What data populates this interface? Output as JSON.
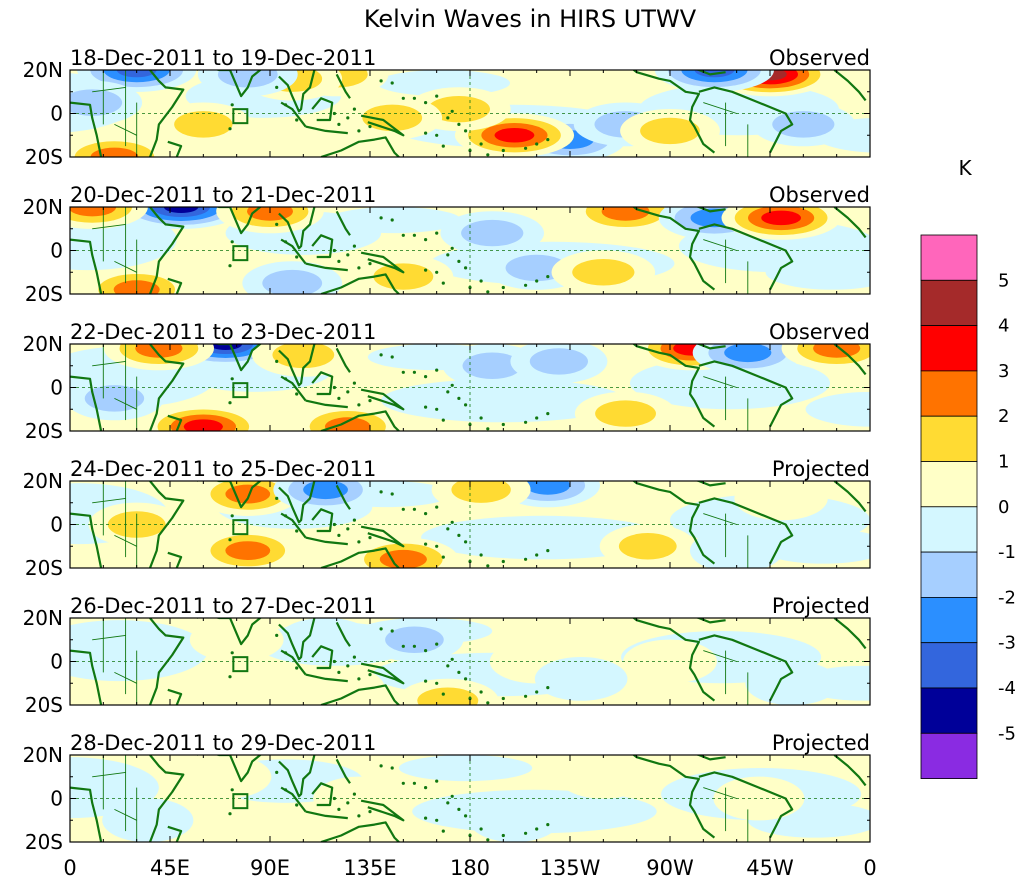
{
  "chart_data": {
    "type": "heatmap",
    "title": "Kelvin Waves in HIRS UTWV",
    "colorbar": {
      "unit_label": "K",
      "levels": [
        "5",
        "4",
        "3",
        "2",
        "1",
        "0",
        "-1",
        "-2",
        "-3",
        "-4",
        "-5"
      ],
      "colors": [
        "#ff66bb",
        "#a52a2a",
        "#ff0000",
        "#ff7300",
        "#ffdb33",
        "#ffffc7",
        "#d4f7ff",
        "#a6cfff",
        "#2b8fff",
        "#3366dd",
        "#000099",
        "#8a2be2"
      ]
    },
    "x_ticks": [
      "0",
      "45E",
      "90E",
      "135E",
      "180",
      "135W",
      "90W",
      "45W",
      "0"
    ],
    "y_ticks": [
      "20N",
      "0",
      "20S"
    ],
    "panels": [
      {
        "period": "18-Dec-2011 to 19-Dec-2011",
        "status": "Observed",
        "amp": 1.0
      },
      {
        "period": "20-Dec-2011 to 21-Dec-2011",
        "status": "Observed",
        "amp": 1.0
      },
      {
        "period": "22-Dec-2011 to 23-Dec-2011",
        "status": "Observed",
        "amp": 0.95
      },
      {
        "period": "24-Dec-2011 to 25-Dec-2011",
        "status": "Projected",
        "amp": 0.7
      },
      {
        "period": "26-Dec-2011 to 27-Dec-2011",
        "status": "Projected",
        "amp": 0.5
      },
      {
        "period": "28-Dec-2011 to 29-Dec-2011",
        "status": "Projected",
        "amp": 0.35
      }
    ],
    "anomalies": [
      [
        {
          "lon": 30,
          "lat": 20,
          "v": -4
        },
        {
          "lon": 120,
          "lat": 18,
          "v": 2
        },
        {
          "lon": 100,
          "lat": 16,
          "v": 1.5
        },
        {
          "lon": 315,
          "lat": 18,
          "v": 4.5
        },
        {
          "lon": 290,
          "lat": 20,
          "v": -4
        },
        {
          "lon": 225,
          "lat": -12,
          "v": -3
        },
        {
          "lon": 200,
          "lat": -10,
          "v": 4
        },
        {
          "lon": 175,
          "lat": 2,
          "v": 2
        },
        {
          "lon": 145,
          "lat": -2,
          "v": 1.5
        },
        {
          "lon": 20,
          "lat": -20,
          "v": 3
        },
        {
          "lon": 250,
          "lat": -5,
          "v": -2
        },
        {
          "lon": 10,
          "lat": 5,
          "v": -1.5
        },
        {
          "lon": 60,
          "lat": -5,
          "v": 1.2
        },
        {
          "lon": 330,
          "lat": -5,
          "v": -2
        },
        {
          "lon": 80,
          "lat": 18,
          "v": -1.5
        },
        {
          "lon": 270,
          "lat": -8,
          "v": 1.5
        }
      ],
      [
        {
          "lon": 50,
          "lat": 20,
          "v": -5
        },
        {
          "lon": 10,
          "lat": 20,
          "v": 3
        },
        {
          "lon": 90,
          "lat": 18,
          "v": 2.5
        },
        {
          "lon": 250,
          "lat": 18,
          "v": 3
        },
        {
          "lon": 290,
          "lat": 15,
          "v": -3
        },
        {
          "lon": 320,
          "lat": 15,
          "v": 4
        },
        {
          "lon": 210,
          "lat": -8,
          "v": -2
        },
        {
          "lon": 240,
          "lat": -10,
          "v": 2
        },
        {
          "lon": 30,
          "lat": -18,
          "v": 2.5
        },
        {
          "lon": 150,
          "lat": -12,
          "v": 1.5
        },
        {
          "lon": 190,
          "lat": 8,
          "v": -2
        },
        {
          "lon": 100,
          "lat": -15,
          "v": -1.5
        }
      ],
      [
        {
          "lon": 70,
          "lat": 20,
          "v": -4.5
        },
        {
          "lon": 40,
          "lat": 18,
          "v": 3
        },
        {
          "lon": 105,
          "lat": 15,
          "v": 2
        },
        {
          "lon": 280,
          "lat": 18,
          "v": 3.5
        },
        {
          "lon": 305,
          "lat": 16,
          "v": -3
        },
        {
          "lon": 345,
          "lat": 18,
          "v": 3
        },
        {
          "lon": 60,
          "lat": -18,
          "v": 4
        },
        {
          "lon": 125,
          "lat": -18,
          "v": 2.5
        },
        {
          "lon": 250,
          "lat": -12,
          "v": 1.8
        },
        {
          "lon": 190,
          "lat": 10,
          "v": -1.5
        },
        {
          "lon": 20,
          "lat": -5,
          "v": -1.5
        },
        {
          "lon": 220,
          "lat": 12,
          "v": -1.2
        }
      ],
      [
        {
          "lon": 80,
          "lat": 14,
          "v": 3
        },
        {
          "lon": 115,
          "lat": 16,
          "v": -3
        },
        {
          "lon": 80,
          "lat": -12,
          "v": 3
        },
        {
          "lon": 150,
          "lat": -16,
          "v": 4
        },
        {
          "lon": 215,
          "lat": 18,
          "v": -3
        },
        {
          "lon": 185,
          "lat": 16,
          "v": 2
        },
        {
          "lon": 260,
          "lat": -10,
          "v": 1.5
        },
        {
          "lon": 30,
          "lat": 0,
          "v": 1.5
        },
        {
          "lon": 320,
          "lat": 12,
          "v": 1
        },
        {
          "lon": 300,
          "lat": -12,
          "v": -1
        }
      ],
      [
        {
          "lon": 115,
          "lat": 10,
          "v": -2
        },
        {
          "lon": 155,
          "lat": 10,
          "v": -2.5
        },
        {
          "lon": 170,
          "lat": -18,
          "v": 3.5
        },
        {
          "lon": 120,
          "lat": -12,
          "v": 2
        },
        {
          "lon": 210,
          "lat": 0,
          "v": 1.5
        },
        {
          "lon": 270,
          "lat": 0,
          "v": 1.5
        },
        {
          "lon": 230,
          "lat": -8,
          "v": -1.2
        },
        {
          "lon": 75,
          "lat": 10,
          "v": 1.5
        },
        {
          "lon": 325,
          "lat": -10,
          "v": -1.5
        }
      ],
      [
        {
          "lon": 70,
          "lat": 10,
          "v": 1.3
        },
        {
          "lon": 130,
          "lat": 0,
          "v": 1.2
        },
        {
          "lon": 240,
          "lat": 10,
          "v": 1.2
        },
        {
          "lon": 35,
          "lat": -10,
          "v": -1.2
        },
        {
          "lon": 200,
          "lat": -10,
          "v": -1.1
        },
        {
          "lon": 310,
          "lat": 0,
          "v": 1.1
        }
      ]
    ]
  }
}
